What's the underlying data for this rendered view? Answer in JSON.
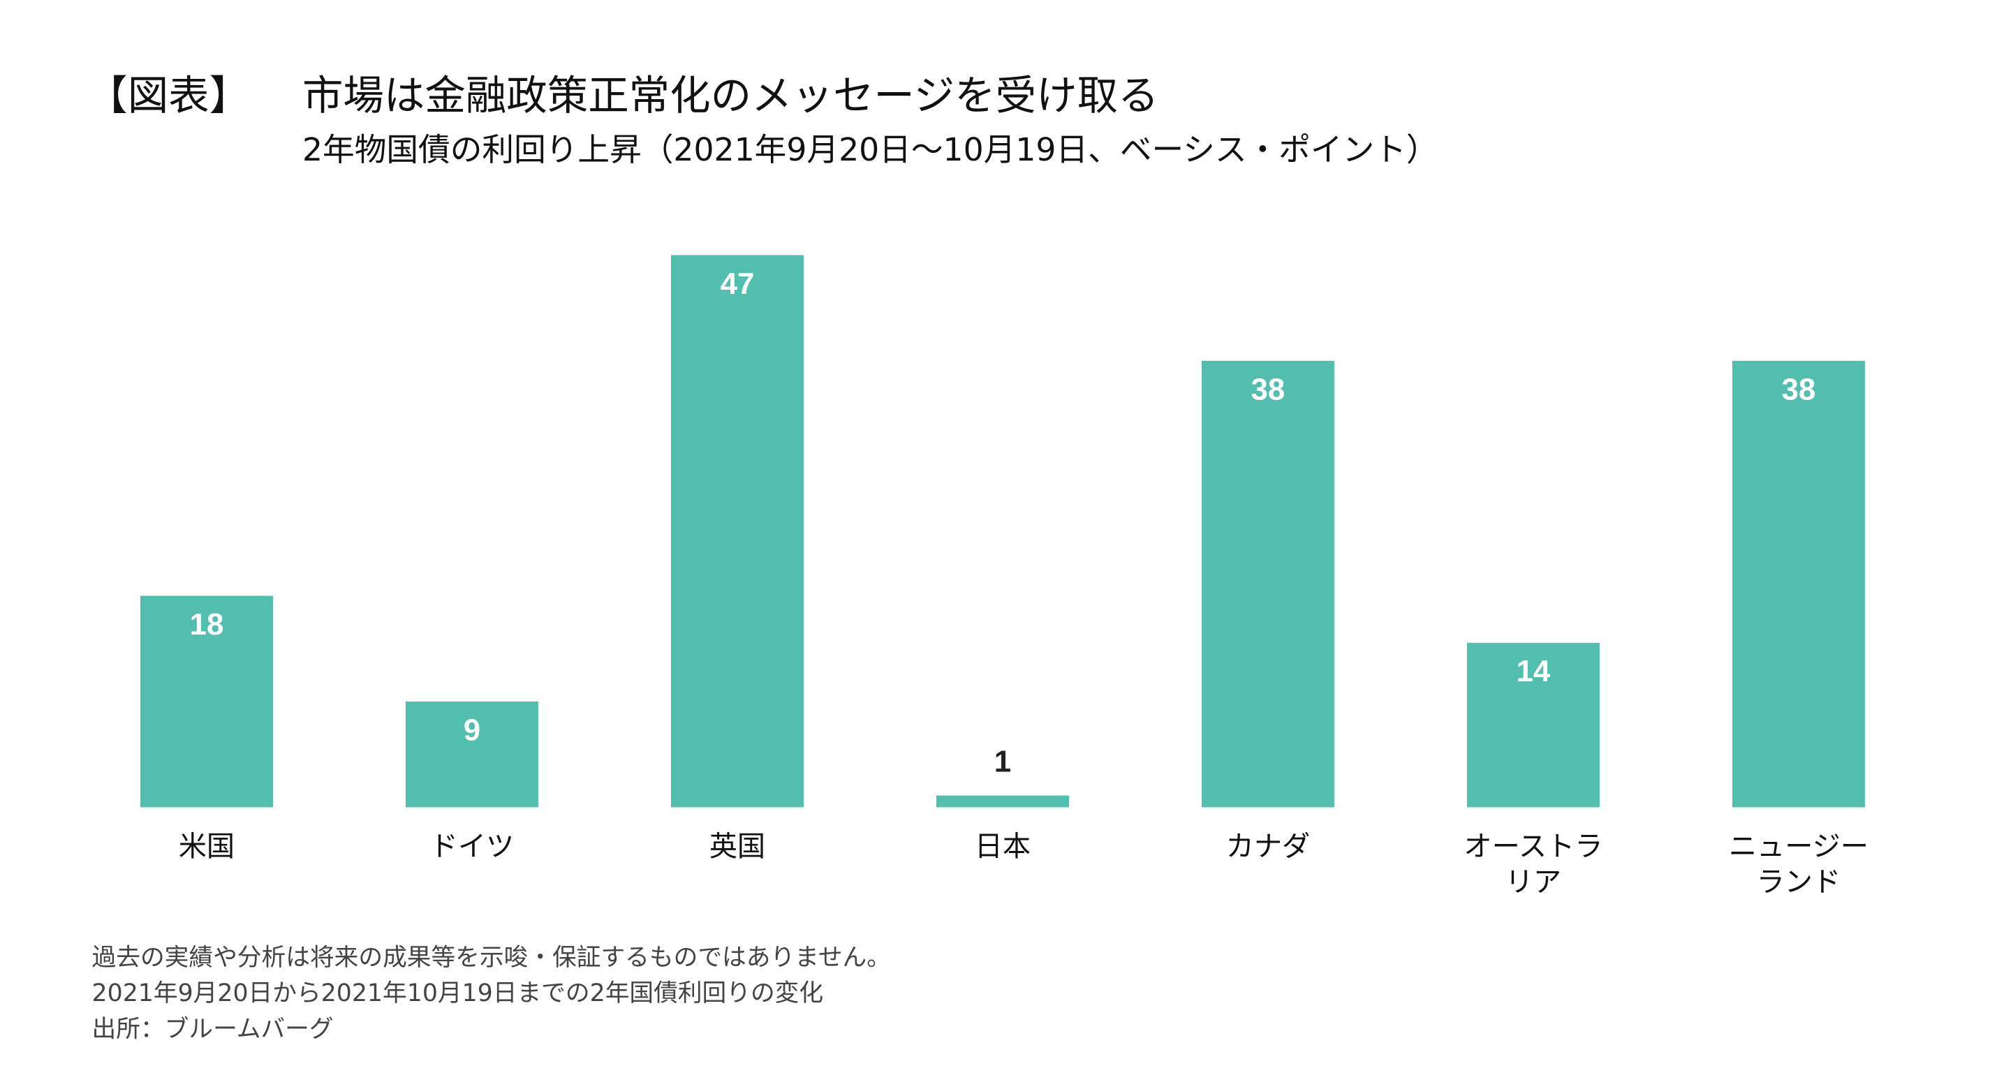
{
  "chart_data": {
    "type": "bar",
    "figure_label": "【図表】",
    "title": "市場は金融政策正常化のメッセージを受け取る",
    "subtitle": "2年物国債の利回り上昇（2021年9月20日～10月19日、ベーシス・ポイント）",
    "categories": [
      "米国",
      "ドイツ",
      "英国",
      "日本",
      "カナダ",
      "オーストラリア",
      "ニュージーランド"
    ],
    "values": [
      18,
      9,
      47,
      1,
      38,
      14,
      38
    ],
    "color": "#52bfae",
    "notes": [
      "過去の実績や分析は将来の成果等を示唆・保証するものではありません。",
      "2021年9月20日から2021年10月19日までの2年国債利回りの変化",
      "出所：ブルームバーグ"
    ]
  }
}
